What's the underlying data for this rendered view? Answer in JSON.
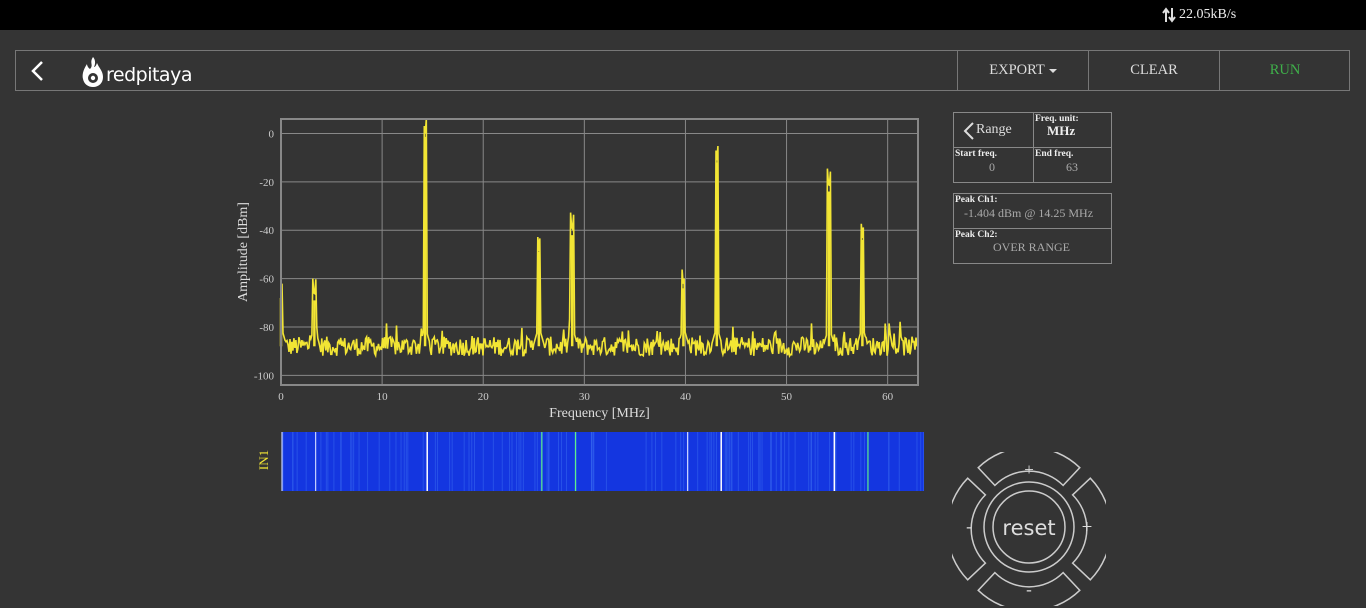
{
  "status": {
    "net_speed": "22.05kB/s"
  },
  "nav": {
    "brand": "redpitaya",
    "export_label": "EXPORT",
    "clear_label": "CLEAR",
    "run_label": "RUN"
  },
  "range_panel": {
    "range_label": "Range",
    "freq_unit_label": "Freq. unit:",
    "freq_unit_value": "MHz",
    "start_label": "Start freq.",
    "start_value": "0",
    "end_label": "End freq.",
    "end_value": "63"
  },
  "peaks": {
    "ch1_label": "Peak Ch1:",
    "ch1_value": "-1.404 dBm @ 14.25 MHz",
    "ch2_label": "Peak Ch2:",
    "ch2_value": "OVER RANGE"
  },
  "chart_data": {
    "type": "line",
    "xlabel": "Frequency [MHz]",
    "ylabel": "Amplitude [dBm]",
    "xlim": [
      0,
      63
    ],
    "ylim": [
      -104,
      6
    ],
    "xticks": [
      0,
      10,
      20,
      30,
      40,
      50,
      60
    ],
    "yticks": [
      0,
      -20,
      -40,
      -60,
      -80,
      -100
    ],
    "grid": true,
    "series": [
      {
        "color": "#f2e534",
        "noise_floor_dbm": -88,
        "peaks": [
          {
            "x": 0.0,
            "y": -68
          },
          {
            "x": 3.3,
            "y": -69
          },
          {
            "x": 14.25,
            "y": -1.4
          },
          {
            "x": 25.5,
            "y": -49
          },
          {
            "x": 28.8,
            "y": -42
          },
          {
            "x": 39.8,
            "y": -64
          },
          {
            "x": 43.1,
            "y": -12
          },
          {
            "x": 54.2,
            "y": -24
          },
          {
            "x": 57.5,
            "y": -44
          }
        ]
      }
    ]
  },
  "waterfall": {
    "channel_label": "IN1"
  },
  "controls": {
    "reset_label": "reset",
    "plus": "+",
    "minus": "-"
  }
}
